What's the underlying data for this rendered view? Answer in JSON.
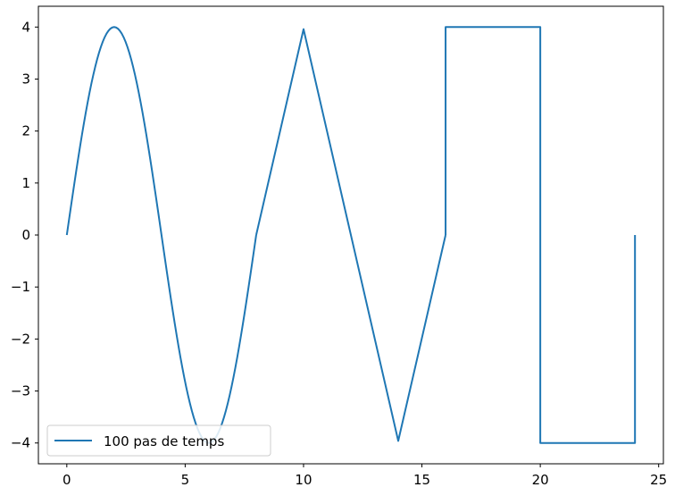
{
  "chart_data": {
    "type": "line",
    "xlim": [
      -1.2,
      25.2
    ],
    "ylim": [
      -4.4,
      4.4
    ],
    "x_ticks": [
      0,
      5,
      10,
      15,
      20,
      25
    ],
    "y_ticks": [
      -4,
      -3,
      -2,
      -1,
      0,
      1,
      2,
      3,
      4
    ],
    "grid": false,
    "legend_position": "lower-left",
    "series": [
      {
        "name": "100 pas de temps",
        "color": "#1f77b4",
        "segments": [
          {
            "shape": "sine",
            "x_start": 0,
            "x_end": 8,
            "amplitude": 4,
            "period": 8
          },
          {
            "shape": "polyline",
            "points": [
              [
                8,
                0
              ],
              [
                10,
                3.96
              ],
              [
                14,
                -3.96
              ],
              [
                16,
                0
              ]
            ]
          },
          {
            "shape": "polyline",
            "points": [
              [
                16,
                0
              ],
              [
                16,
                4
              ],
              [
                20,
                4
              ],
              [
                20,
                -4
              ],
              [
                24,
                -4
              ],
              [
                24,
                0
              ]
            ]
          }
        ]
      }
    ]
  }
}
